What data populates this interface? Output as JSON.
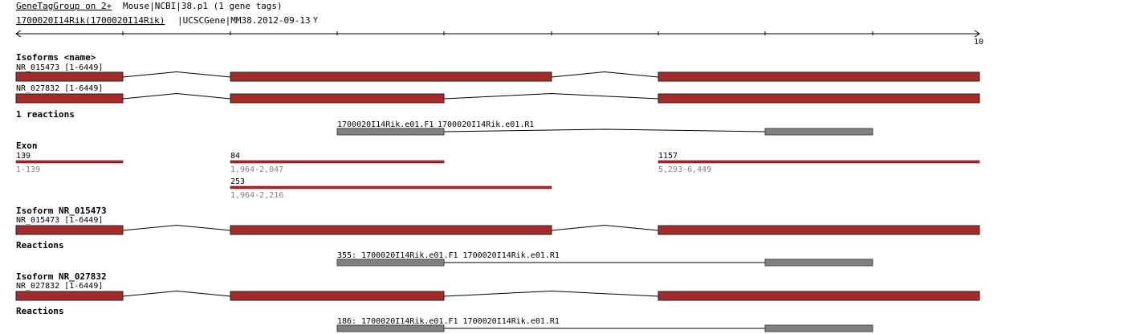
{
  "header": {
    "line1_link": "GeneTagGroup on 2+",
    "line1_rest": " Mouse|NCBI|38.p1 (1 gene tags)",
    "line2_link": "1700020I14Rik(1700020I14Rik)",
    "line2_rest": "|UCSCGene|MM38.2012-09-13",
    "menu_glyph": "Y"
  },
  "ruler": {
    "end_label": "10"
  },
  "isoforms_section": {
    "title": "Isoforms <name>",
    "rows": [
      {
        "label": "NR_015473 [1-6449]"
      },
      {
        "label": "NR_027832 [1-6449]"
      }
    ]
  },
  "reactions_section": {
    "title": "1 reactions",
    "primer_forward": "1700020I14Rik.e01.F1",
    "primer_reverse": "1700020I14Rik.e01.R1"
  },
  "exon_section": {
    "title": "Exon",
    "exons": [
      {
        "length": "139",
        "range": "1-139"
      },
      {
        "length": "84",
        "range": "1,964-2,047"
      },
      {
        "length": "1157",
        "range": "5,293-6,449"
      },
      {
        "length": "253",
        "range": "1,964-2,216"
      }
    ]
  },
  "isoform_panels": [
    {
      "title": "Isoform NR_015473",
      "label": "NR_015473 [1-6449]",
      "reactions_title": "Reactions",
      "reaction_label": "355: 1700020I14Rik.e01.F1 1700020I14Rik.e01.R1"
    },
    {
      "title": "Isoform NR_027832",
      "label": "NR_027832 [1-6449]",
      "reactions_title": "Reactions",
      "reaction_label": "186: 1700020I14Rik.e01.F1 1700020I14Rik.e01.R1"
    }
  ],
  "colors": {
    "exon": "#a52a2a",
    "primer": "#808080",
    "range_text": "#808080"
  }
}
